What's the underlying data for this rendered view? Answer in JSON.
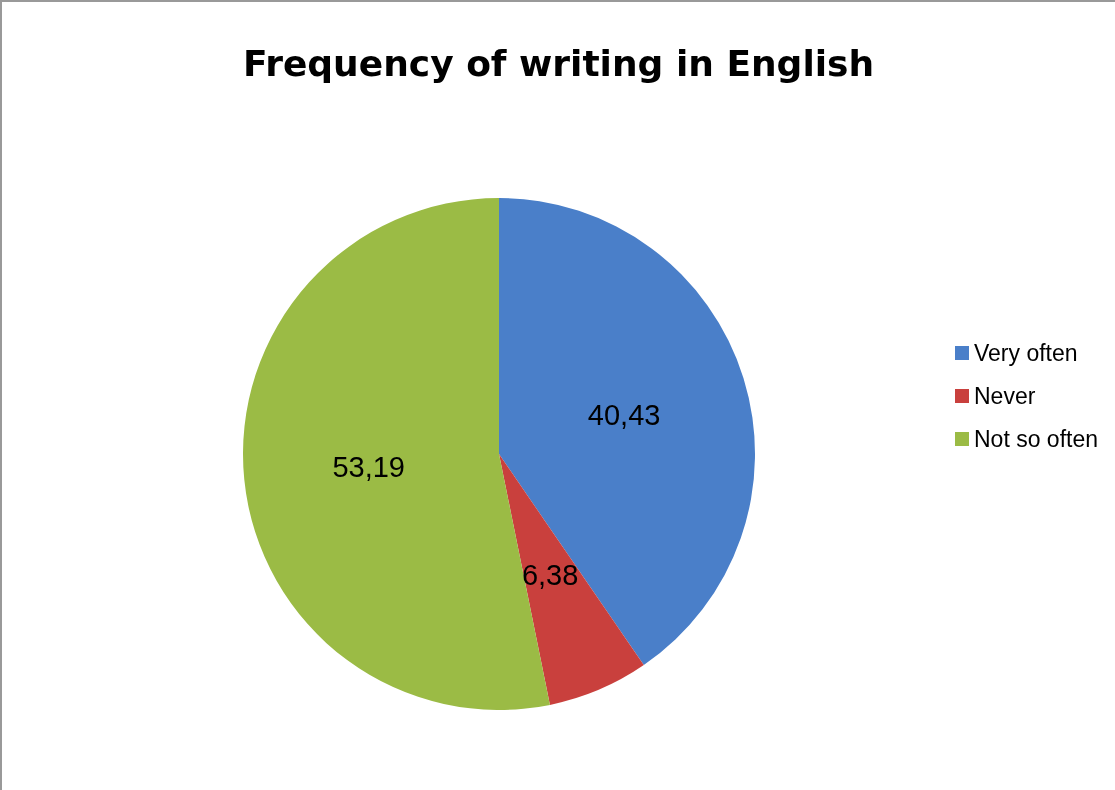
{
  "chart_data": {
    "type": "pie",
    "title": "Frequency of writing in English",
    "categories": [
      "Very often",
      "Never",
      "Not so often"
    ],
    "values": [
      40.43,
      6.38,
      53.19
    ],
    "value_labels": [
      "40,43",
      "6,38",
      "53,19"
    ],
    "colors": [
      "#4a7fc9",
      "#c9403d",
      "#9bbb45"
    ],
    "legend": "right"
  }
}
